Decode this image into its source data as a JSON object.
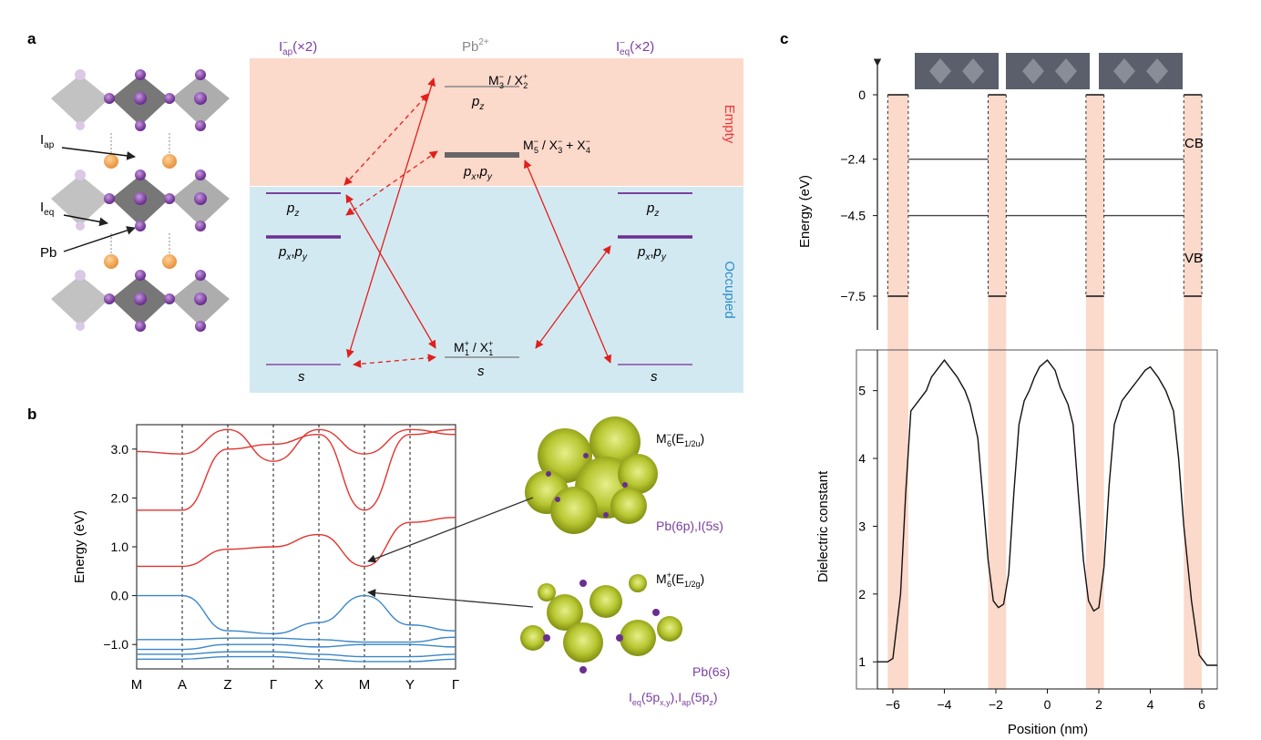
{
  "panels": {
    "a": {
      "letter": "a",
      "colors": {
        "empty_bg": "#fbd9cb",
        "occupied_bg": "#d3e9f2",
        "purple": "#7a3fa0",
        "red_arrow": "#e0201c",
        "gray": "#888888",
        "empty_text": "#e8383d",
        "occupied_text": "#2c8ec9"
      },
      "headers": {
        "left": {
          "main": "I",
          "sup": "−",
          "sub": "ap",
          "tail": "(×2)"
        },
        "center": {
          "main": "Pb",
          "sup": "2+"
        },
        "right": {
          "main": "I",
          "sup": "−",
          "sub": "eq",
          "tail": "(×2)"
        }
      },
      "region_labels": {
        "empty": "Empty",
        "occupied": "Occupied"
      },
      "structure_labels": {
        "i_ap": {
          "main": "I",
          "sub": "ap"
        },
        "i_eq": {
          "main": "I",
          "sub": "eq"
        },
        "pb": "Pb"
      },
      "left_levels": {
        "pz": "p",
        "pz_sub": "z",
        "pxpy_a": "p",
        "pxpy_a_sub": "x",
        "pxpy_b": "p",
        "pxpy_b_sub": "y",
        "s": "s"
      },
      "center_levels": {
        "top_label": {
          "m": "M",
          "m_sup": "−",
          "m_sub": "3",
          "x": "X",
          "x_sup": "+",
          "x_sub": "2"
        },
        "top_orb": {
          "p": "p",
          "sub": "z"
        },
        "mid_label": {
          "m": "M",
          "m_sup": "−",
          "m_sub": "5",
          "x1": "X",
          "x1_sup": "−",
          "x1_sub": "3",
          "x2": "X",
          "x2_sup": "−",
          "x2_sub": "4"
        },
        "mid_orb": {
          "p1": "p",
          "sub1": "x",
          "p2": "p",
          "sub2": "y"
        },
        "bottom_label": {
          "m": "M",
          "m_sup": "+",
          "m_sub": "1",
          "x": "X",
          "x_sup": "+",
          "x_sub": "1"
        },
        "bottom_orb": "s"
      },
      "right_levels": {
        "pz": "p",
        "pz_sub": "z",
        "pxpy_a": "p",
        "pxpy_a_sub": "x",
        "pxpy_b": "p",
        "pxpy_b_sub": "y",
        "s": "s"
      }
    },
    "b": {
      "letter": "b",
      "ylabel": "Energy (eV)",
      "yticks": [
        "3.0",
        "2.0",
        "1.0",
        "0.0",
        "−1.0"
      ],
      "kpoints": [
        "M",
        "A",
        "Z",
        "Γ",
        "X",
        "M",
        "Y",
        "Γ"
      ],
      "colors": {
        "conduction": "#e3342f",
        "valence": "#3a86c8"
      },
      "annotations": {
        "cb": {
          "m": "M",
          "m_sup": "−",
          "m_sub": "6",
          "e": "E",
          "e_sub": "1/2u",
          "orbital": "Pb(6p),I(5s)"
        },
        "vb": {
          "m": "M",
          "m_sup": "+",
          "m_sub": "6",
          "e": "E",
          "e_sub": "1/2g",
          "orbital1": "Pb(6s)",
          "orbital2": "I",
          "orbital2_sub": "eq",
          "orbital2_p": "(5p",
          "orbital2_psub": "x,y",
          "orbital3": "),I",
          "orbital3_sub": "ap",
          "orbital3_p": "(5p",
          "orbital3_psub": "z",
          "orbital3_end": ")"
        }
      }
    },
    "c": {
      "letter": "c",
      "top": {
        "ylabel": "Energy (eV)",
        "yticks": [
          "0",
          "−2.4",
          "−4.5",
          "−7.5"
        ],
        "labels": {
          "cb": "CB",
          "vb": "VB"
        }
      },
      "bottom": {
        "ylabel": "Dielectric constant",
        "xlabel": "Position (nm)",
        "yticks": [
          "1",
          "2",
          "3",
          "4",
          "5"
        ],
        "xticks": [
          "−6",
          "−4",
          "−2",
          "0",
          "2",
          "4",
          "6"
        ]
      },
      "colors": {
        "barrier": "#fbd9cb"
      }
    }
  },
  "chart_data": [
    {
      "type": "line",
      "title": "",
      "xlabel": "",
      "ylabel": "Energy (eV)",
      "categories": [
        "M",
        "A",
        "Z",
        "Γ",
        "X",
        "M",
        "Y",
        "Γ"
      ],
      "ylim": [
        -1.5,
        3.5
      ],
      "series": [
        {
          "values": [
            0.6,
            0.6,
            0.95,
            1.0,
            1.25,
            0.6,
            1.5,
            1.6
          ]
        },
        {
          "values": [
            1.75,
            1.75,
            3.0,
            3.1,
            3.3,
            1.75,
            3.3,
            3.4
          ]
        },
        {
          "values": [
            2.95,
            2.9,
            3.4,
            2.75,
            3.4,
            2.9,
            3.4,
            3.3
          ]
        },
        {
          "values": [
            0.0,
            0.0,
            -0.72,
            -0.78,
            -0.55,
            0.0,
            -0.6,
            -0.72
          ]
        },
        {
          "values": [
            -0.9,
            -0.9,
            -0.87,
            -0.87,
            -0.9,
            -0.95,
            -0.95,
            -0.85
          ]
        },
        {
          "values": [
            -1.1,
            -1.1,
            -1.0,
            -1.0,
            -1.05,
            -1.0,
            -1.0,
            -1.05
          ]
        },
        {
          "values": [
            -1.2,
            -1.2,
            -1.15,
            -1.15,
            -1.2,
            -1.25,
            -1.25,
            -1.2
          ]
        },
        {
          "values": [
            -1.3,
            -1.3,
            -1.25,
            -1.25,
            -1.3,
            -1.35,
            -1.35,
            -1.3
          ]
        }
      ]
    },
    {
      "type": "line",
      "title": "",
      "xlabel": "",
      "ylabel": "Energy (eV)",
      "ylim": [
        -8.5,
        0.5
      ],
      "series": [
        {
          "x": [
            -5.9,
            5.9
          ],
          "values": [
            -2.4,
            -2.4
          ]
        },
        {
          "x": [
            -5.9,
            5.9
          ],
          "values": [
            -4.5,
            -4.5
          ]
        },
        {
          "x": [
            -6.3,
            6.3
          ],
          "values": [
            0,
            0
          ]
        },
        {
          "x": [
            -6.3,
            6.3
          ],
          "values": [
            -7.5,
            -7.5
          ]
        }
      ]
    },
    {
      "type": "line",
      "title": "",
      "xlabel": "Position (nm)",
      "ylabel": "Dielectric constant",
      "xlim": [
        -6.6,
        6.6
      ],
      "ylim": [
        0.6,
        5.6
      ],
      "barriers": [
        [
          -6.2,
          -5.4
        ],
        [
          -2.3,
          -1.6
        ],
        [
          1.5,
          2.2
        ],
        [
          5.3,
          6.0
        ]
      ],
      "series": [
        {
          "x": [
            -6.6,
            -6.2,
            -6.0,
            -5.7,
            -5.5,
            -5.3,
            -5.0,
            -4.7,
            -4.5,
            -4.2,
            -4.0,
            -3.8,
            -3.5,
            -3.2,
            -3.0,
            -2.7,
            -2.5,
            -2.3,
            -2.1,
            -1.9,
            -1.7,
            -1.5,
            -1.3,
            -1.1,
            -0.9,
            -0.7,
            -0.5,
            -0.3,
            0.0,
            0.3,
            0.5,
            0.8,
            1.0,
            1.2,
            1.4,
            1.6,
            1.8,
            2.0,
            2.2,
            2.4,
            2.6,
            2.9,
            3.2,
            3.5,
            3.8,
            4.0,
            4.3,
            4.6,
            4.9,
            5.1,
            5.3,
            5.6,
            5.9,
            6.2,
            6.6
          ],
          "values": [
            1.0,
            1.0,
            1.05,
            2.0,
            3.5,
            4.7,
            4.85,
            5.0,
            5.2,
            5.35,
            5.45,
            5.35,
            5.2,
            5.0,
            4.8,
            4.3,
            3.4,
            2.5,
            1.9,
            1.8,
            1.85,
            2.3,
            3.5,
            4.5,
            4.85,
            5.0,
            5.2,
            5.35,
            5.45,
            5.3,
            5.05,
            4.8,
            4.5,
            3.5,
            2.5,
            1.9,
            1.75,
            1.8,
            2.4,
            3.6,
            4.5,
            4.85,
            5.0,
            5.15,
            5.3,
            5.35,
            5.2,
            5.0,
            4.7,
            4.0,
            3.0,
            1.9,
            1.1,
            0.95,
            0.95
          ]
        }
      ]
    }
  ]
}
